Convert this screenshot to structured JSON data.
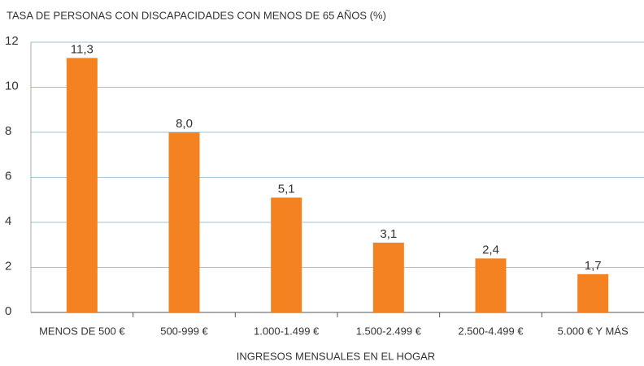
{
  "chart_data": {
    "type": "bar",
    "title": "TASA DE PERSONAS CON DISCAPACIDADES CON MENOS DE 65 AÑOS (%)",
    "x_label": "INGRESOS MENSUALES EN EL HOGAR",
    "categories": [
      "MENOS DE 500 €",
      "500-999 €",
      "1.000-1.499 €",
      "1.500-2.499 €",
      "2.500-4.499 €",
      "5.000 € Y MÁS"
    ],
    "values": [
      11.3,
      8.0,
      5.1,
      3.1,
      2.4,
      1.7
    ],
    "value_labels": [
      "11,3",
      "8,0",
      "5,1",
      "3,1",
      "2,4",
      "1,7"
    ],
    "color": "#f58220",
    "ylim": [
      0,
      12
    ],
    "yticks": [
      0,
      2,
      4,
      6,
      8,
      10,
      12
    ],
    "grid": true
  }
}
